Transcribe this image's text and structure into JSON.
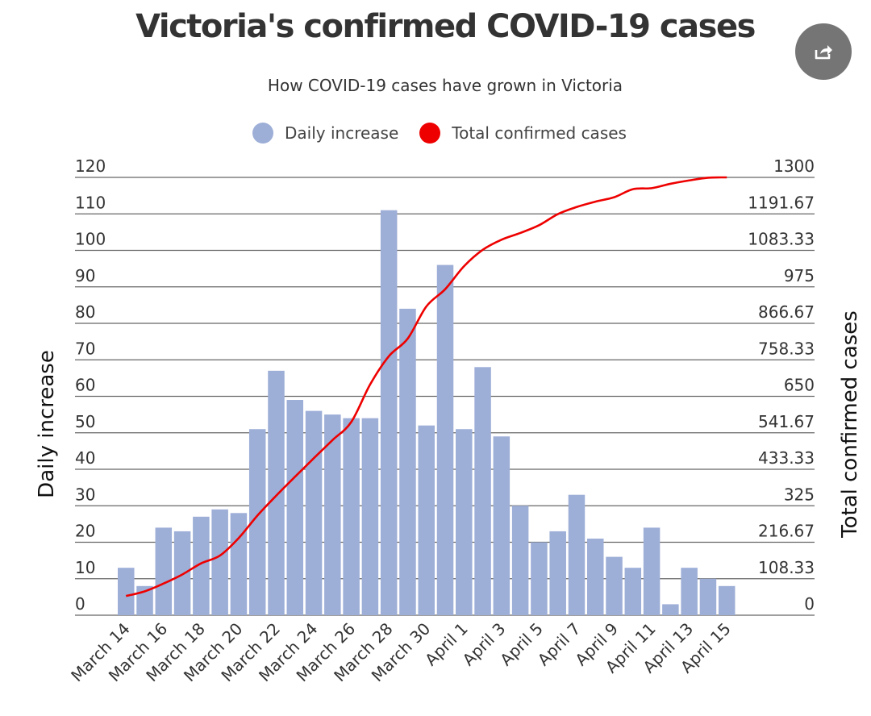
{
  "title": "Victoria's confirmed COVID-19 cases",
  "subtitle": "How COVID-19 cases have grown in Victoria",
  "share_icon": "share-icon",
  "colors": {
    "bar": "#9daed7",
    "line": "#ee0000",
    "grid": "#666666",
    "text": "#333333"
  },
  "chart_data": {
    "type": "bar",
    "title": "Victoria's confirmed COVID-19 cases",
    "subtitle": "How COVID-19 cases have grown in Victoria",
    "legend": [
      "Daily increase",
      "Total confirmed cases"
    ],
    "legend_position": "top-center",
    "categories": [
      "March 14",
      "March 15",
      "March 16",
      "March 17",
      "March 18",
      "March 19",
      "March 20",
      "March 21",
      "March 22",
      "March 23",
      "March 24",
      "March 25",
      "March 26",
      "March 27",
      "March 28",
      "March 29",
      "March 30",
      "March 31",
      "April 1",
      "April 2",
      "April 3",
      "April 4",
      "April 5",
      "April 6",
      "April 7",
      "April 8",
      "April 9",
      "April 10",
      "April 11",
      "April 12",
      "April 13",
      "April 14",
      "April 15"
    ],
    "tick_labels": [
      "March 14",
      "March 16",
      "March 18",
      "March 20",
      "March 22",
      "March 24",
      "March 26",
      "March 28",
      "March 30",
      "April 1",
      "April 3",
      "April 5",
      "April 7",
      "April 9",
      "April 11",
      "April 13",
      "April 15"
    ],
    "series": [
      {
        "name": "Daily increase",
        "type": "bar",
        "axis": "left",
        "values": [
          13,
          8,
          24,
          23,
          27,
          29,
          28,
          51,
          67,
          59,
          56,
          55,
          54,
          54,
          111,
          84,
          52,
          96,
          51,
          68,
          49,
          30,
          20,
          23,
          33,
          21,
          16,
          13,
          24,
          3,
          13,
          10,
          8
        ]
      },
      {
        "name": "Total confirmed cases",
        "type": "line",
        "axis": "right",
        "values": [
          57,
          71,
          94,
          121,
          154,
          177,
          229,
          296,
          355,
          411,
          466,
          520,
          574,
          685,
          769,
          821,
          917,
          968,
          1036,
          1085,
          1115,
          1135,
          1158,
          1191,
          1212,
          1228,
          1241,
          1265,
          1268,
          1281,
          1291,
          1299,
          1300
        ]
      }
    ],
    "ylabel": "Daily increase",
    "ylim": [
      0,
      120
    ],
    "yticks": [
      "0",
      "10",
      "20",
      "30",
      "40",
      "50",
      "60",
      "70",
      "80",
      "90",
      "100",
      "110",
      "120"
    ],
    "y2label": "Total confirmed cases",
    "y2lim": [
      0,
      1300
    ],
    "y2ticks": [
      "0",
      "108.33",
      "216.67",
      "325",
      "433.33",
      "541.67",
      "650",
      "758.33",
      "866.67",
      "975",
      "1083.33",
      "1191.67",
      "1300"
    ],
    "grid": true
  }
}
